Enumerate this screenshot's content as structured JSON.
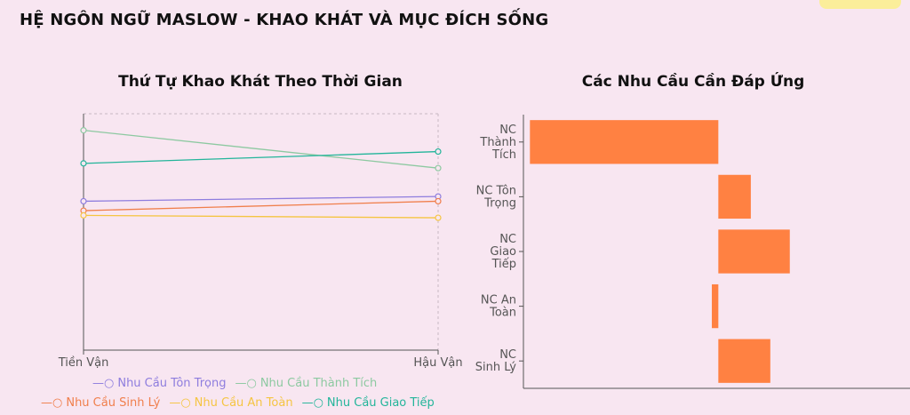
{
  "page": {
    "title": "HỆ NGÔN NGỮ MASLOW - KHAO KHÁT VÀ MỤC ĐÍCH SỐNG"
  },
  "colors": {
    "background": "#f8e6f1",
    "bar": "#ff8142",
    "ton_trong": "#8e7dde",
    "thanh_tich": "#8dc9a1",
    "sinh_ly": "#f07f4c",
    "an_toan": "#f5c542",
    "giao_tiep": "#23b59a"
  },
  "chart_data": [
    {
      "type": "line",
      "title": "Thứ Tự Khao Khát Theo Thời Gian",
      "categories": [
        "Tiền Vận",
        "Hậu Vận"
      ],
      "ylim": [
        0,
        10
      ],
      "grid": false,
      "legend_position": "bottom",
      "series": [
        {
          "name": "Nhu Cầu Tôn Trọng",
          "values": [
            6.3,
            6.5
          ],
          "color": "#8e7dde"
        },
        {
          "name": "Nhu Cầu Thành Tích",
          "values": [
            9.3,
            7.7
          ],
          "color": "#8dc9a1"
        },
        {
          "name": "Nhu Cầu Sinh Lý",
          "values": [
            5.9,
            6.3
          ],
          "color": "#f07f4c"
        },
        {
          "name": "Nhu Cầu An Toàn",
          "values": [
            5.7,
            5.6
          ],
          "color": "#f5c542"
        },
        {
          "name": "Nhu Cầu Giao Tiếp",
          "values": [
            7.9,
            8.4
          ],
          "color": "#23b59a"
        }
      ]
    },
    {
      "type": "bar",
      "orientation": "horizontal",
      "title": "Các Nhu Cầu Cần Đáp Ứng",
      "categories": [
        "NC Thành Tích",
        "NC Tôn Trọng",
        "NC Giao Tiếp",
        "NC An Toàn",
        "NC Sinh Lý"
      ],
      "category_lines": [
        [
          "NC",
          "Thành",
          "Tích"
        ],
        [
          "NC Tôn",
          "Trọng"
        ],
        [
          "NC",
          "Giao",
          "Tiếp"
        ],
        [
          "NC An",
          "Toàn"
        ],
        [
          "NC",
          "Sinh Lý"
        ]
      ],
      "values": [
        -5.8,
        1.0,
        2.2,
        -0.2,
        1.6
      ],
      "xlim": [
        -6,
        5.9
      ],
      "grid": false
    }
  ]
}
